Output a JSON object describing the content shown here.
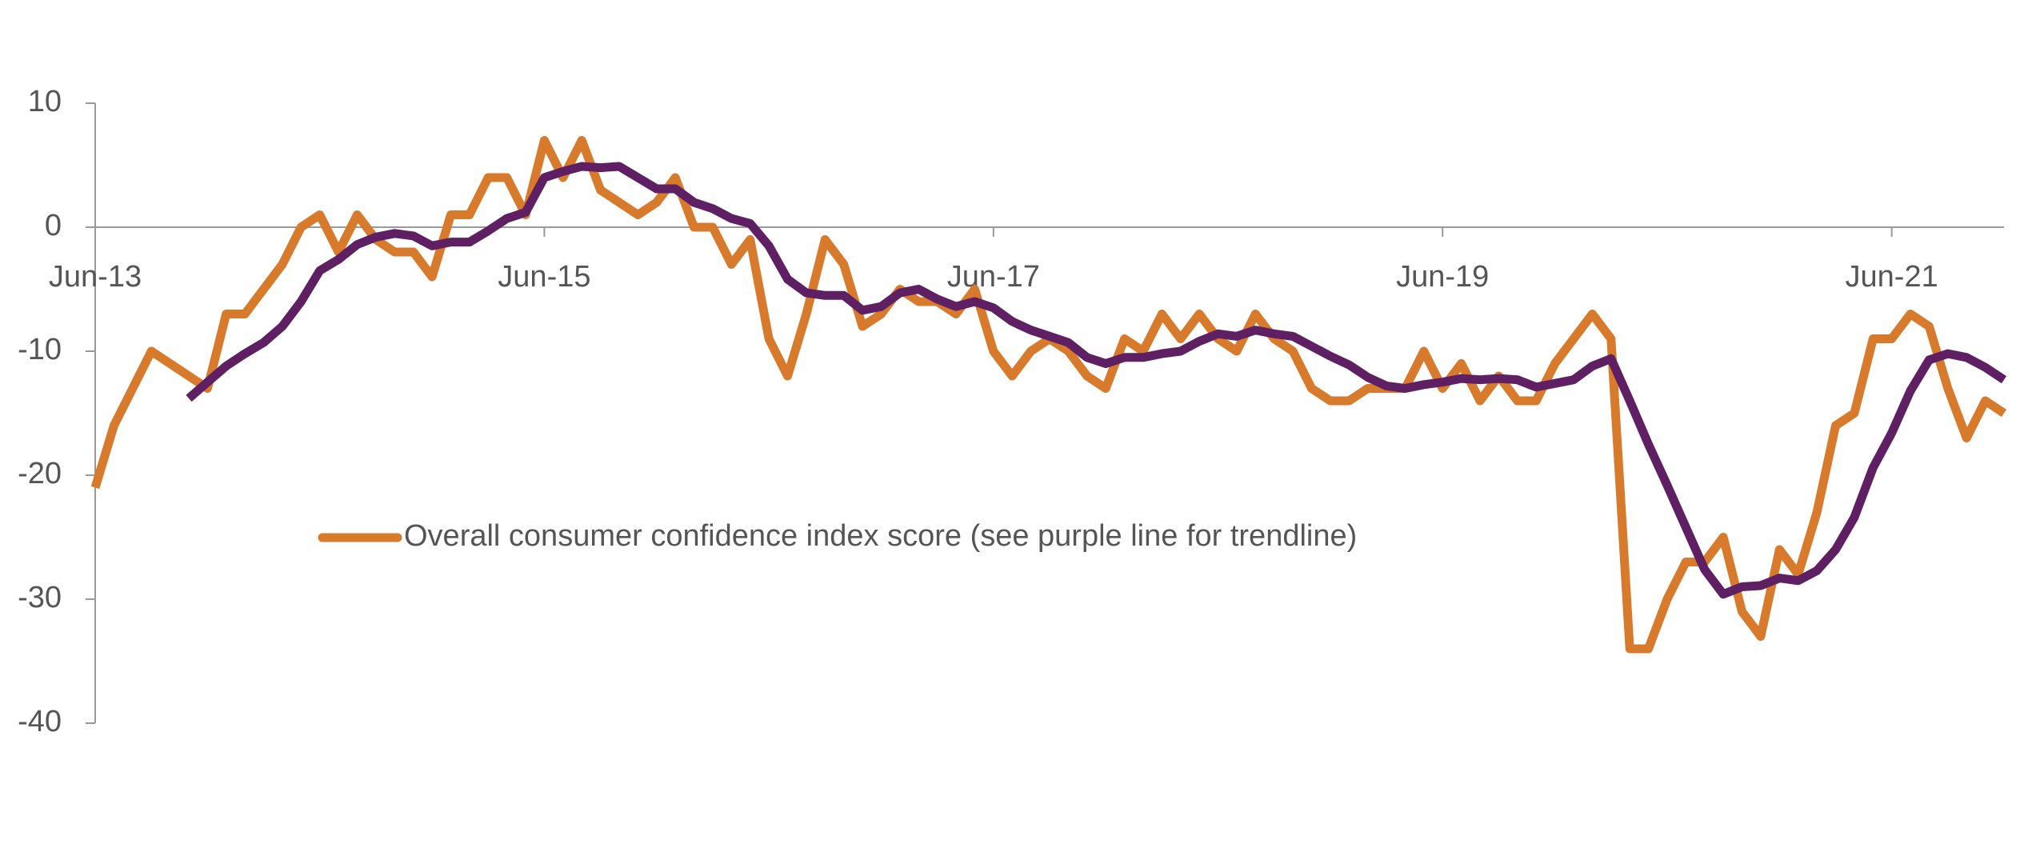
{
  "chart_data": {
    "type": "line",
    "categories": [
      "Jun-13",
      null,
      null,
      null,
      null,
      null,
      null,
      null,
      null,
      null,
      null,
      null,
      null,
      null,
      null,
      null,
      null,
      null,
      null,
      null,
      null,
      null,
      null,
      null,
      "Jun-15",
      null,
      null,
      null,
      null,
      null,
      null,
      null,
      null,
      null,
      null,
      null,
      null,
      null,
      null,
      null,
      null,
      null,
      null,
      null,
      null,
      null,
      null,
      null,
      "Jun-17",
      null,
      null,
      null,
      null,
      null,
      null,
      null,
      null,
      null,
      null,
      null,
      null,
      null,
      null,
      null,
      null,
      null,
      null,
      null,
      null,
      null,
      null,
      null,
      "Jun-19",
      null,
      null,
      null,
      null,
      null,
      null,
      null,
      null,
      null,
      null,
      null,
      null,
      null,
      null,
      null,
      null,
      null,
      null,
      null,
      null,
      null,
      null,
      null,
      "Jun-21",
      null,
      null,
      null,
      null,
      null,
      null
    ],
    "series": [
      {
        "name": "Overall consumer confidence index score (see purple line for trendline)",
        "color": "#d87a2c",
        "values": [
          -21,
          -16,
          -13,
          -10,
          -11,
          -12,
          -13,
          -7,
          -7,
          -5,
          -3,
          0,
          1,
          -2,
          1,
          -1,
          -2,
          -2,
          -4,
          1,
          1,
          4,
          4,
          1,
          7,
          4,
          7,
          3,
          2,
          1,
          2,
          4,
          0,
          0,
          -3,
          -1,
          -9,
          -12,
          -7,
          -1,
          -3,
          -8,
          -7,
          -5,
          -6,
          -6,
          -7,
          -5,
          -10,
          -12,
          -10,
          -9,
          -10,
          -12,
          -13,
          -9,
          -10,
          -7,
          -9,
          -7,
          -9,
          -10,
          -7,
          -9,
          -10,
          -13,
          -14,
          -14,
          -13,
          -13,
          -13,
          -10,
          -13,
          -11,
          -14,
          -12,
          -14,
          -14,
          -11,
          -9,
          -7,
          -9,
          -34,
          -34,
          -30,
          -27,
          -27,
          -25,
          -31,
          -33,
          -26,
          -28,
          -23,
          -16,
          -15,
          -9,
          -9,
          -7,
          -8,
          -13,
          -17,
          -14,
          -15
        ]
      },
      {
        "color": "#5e1f63",
        "values": [
          null,
          null,
          null,
          null,
          null,
          -13.8,
          -12.5,
          -11.2,
          -10.2,
          -9.3,
          -8,
          -6,
          -3.5,
          -2.6,
          -1.4,
          -0.8,
          -0.5,
          -0.7,
          -1.5,
          -1.2,
          -1.2,
          -0.3,
          0.7,
          1.2,
          4,
          4.5,
          4.9,
          4.8,
          4.9,
          4,
          3.1,
          3.1,
          2,
          1.5,
          0.7,
          0.3,
          -1.5,
          -4.2,
          -5.3,
          -5.5,
          -5.5,
          -6.7,
          -6.4,
          -5.3,
          -5,
          -5.8,
          -6.4,
          -6,
          -6.5,
          -7.6,
          -8.3,
          -8.8,
          -9.3,
          -10.5,
          -11,
          -10.5,
          -10.5,
          -10.2,
          -10,
          -9.2,
          -8.6,
          -8.8,
          -8.3,
          -8.6,
          -8.8,
          -9.6,
          -10.4,
          -11.1,
          -12.1,
          -12.8,
          -13,
          -12.7,
          -12.5,
          -12.2,
          -12.3,
          -12.2,
          -12.3,
          -12.9,
          -12.6,
          -12.3,
          -11.2,
          -10.6,
          -14,
          -17.5,
          -20.8,
          -24.2,
          -27.6,
          -29.6,
          -29,
          -28.9,
          -28.3,
          -28.5,
          -27.7,
          -26,
          -23.4,
          -19.4,
          -16.6,
          -13.2,
          -10.7,
          -10.2,
          -10.5,
          -11.3,
          -12.3
        ]
      }
    ],
    "ylim": [
      -40,
      10
    ],
    "yticks": [
      10,
      0,
      -10,
      -20,
      -30,
      -40
    ],
    "grid": false
  }
}
